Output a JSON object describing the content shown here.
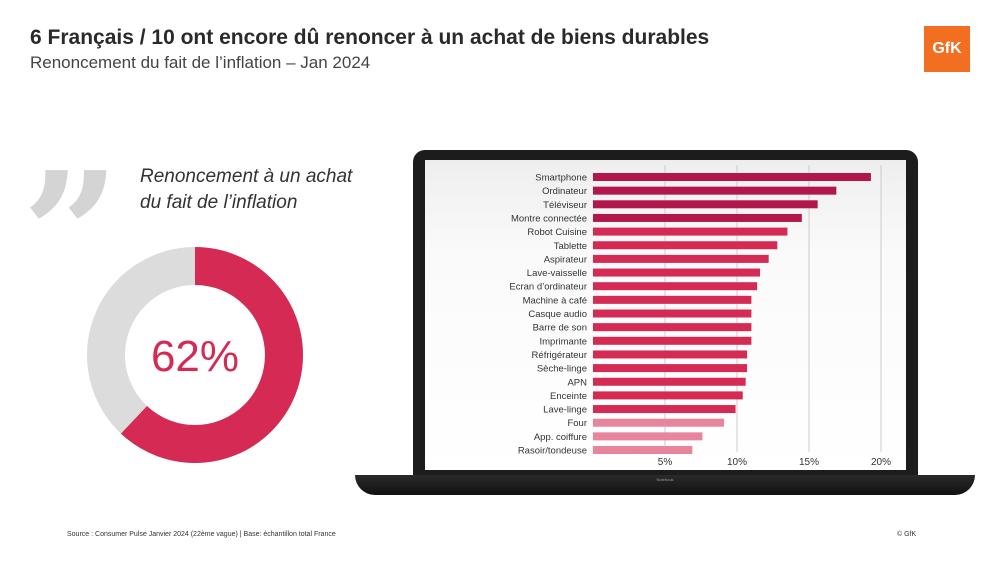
{
  "header": {
    "title": "6 Français / 10 ont encore dû renoncer à un achat de biens durables",
    "subtitle": "Renoncement du fait de l’inflation  – Jan 2024",
    "logo": "GfK"
  },
  "quote": {
    "text_line1": "Renoncement à un achat",
    "text_line2": "du fait de l’inflation"
  },
  "donut": {
    "value": 62,
    "label": "62%",
    "colors": {
      "filled": "#d42a53",
      "rest": "#dcdcdc"
    }
  },
  "laptop": {
    "label": "Notebook"
  },
  "chart_data": {
    "type": "bar",
    "orientation": "horizontal",
    "categories": [
      "Smartphone",
      "Ordinateur",
      "Téléviseur",
      "Montre connectée",
      "Robot Cuisine",
      "Tablette",
      "Aspirateur",
      "Lave-vaisselle",
      "Ecran d’ordinateur",
      "Machine à café",
      "Casque audio",
      "Barre de son",
      "Imprimante",
      "Réfrigérateur",
      "Sèche-linge",
      "APN",
      "Enceinte",
      "Lave-linge",
      "Four",
      "App. coiffure",
      "Rasoir/tondeuse"
    ],
    "values": [
      19.3,
      16.9,
      15.6,
      14.5,
      13.5,
      12.8,
      12.2,
      11.6,
      11.4,
      11.0,
      11.0,
      11.0,
      11.0,
      10.7,
      10.7,
      10.6,
      10.4,
      9.9,
      9.1,
      7.6,
      6.9
    ],
    "xlim": [
      0,
      20
    ],
    "xticks": [
      "5%",
      "10%",
      "15%",
      "20%"
    ],
    "xtick_values": [
      5,
      10,
      15,
      20
    ],
    "grid": true,
    "colors": {
      "dark": "#b3164a",
      "main": "#d42a53",
      "light": "#e8849c"
    }
  },
  "footer": {
    "source": "Source : Consumer Pulse Janvier 2024 (22ème vague) | Base: échantillon total France",
    "copyright": "© GfK"
  }
}
